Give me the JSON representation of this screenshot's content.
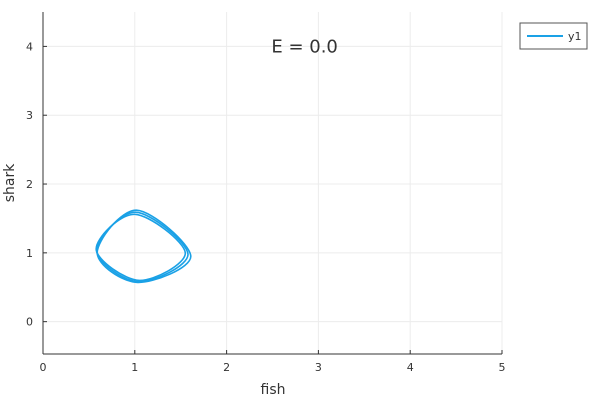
{
  "chart_data": {
    "type": "line",
    "xlabel": "fish",
    "ylabel": "shark",
    "xlim": [
      0,
      5
    ],
    "ylim": [
      -0.47,
      4.5
    ],
    "xticks": [
      0,
      1,
      2,
      3,
      4,
      5
    ],
    "yticks": [
      0,
      1,
      2,
      3,
      4
    ],
    "xtick_labels": [
      "0",
      "1",
      "2",
      "3",
      "4",
      "5"
    ],
    "ytick_labels": [
      "0",
      "1",
      "2",
      "3",
      "4"
    ],
    "grid": true,
    "legend_position": "top-right",
    "annotation": {
      "text": "E = 0.0",
      "x": 2.85,
      "y": 4.0
    },
    "series": [
      {
        "name": "y1",
        "color": "#1aa1e6",
        "loops": [
          {
            "x_min": 0.58,
            "x_max": 1.55,
            "y_min": 0.6,
            "y_max": 1.56,
            "x_top": 1.0,
            "y_left": 1.05,
            "x_bottom": 1.05
          },
          {
            "x_min": 0.585,
            "x_max": 1.58,
            "y_min": 0.58,
            "y_max": 1.59,
            "x_top": 1.01,
            "y_left": 1.03,
            "x_bottom": 1.04
          },
          {
            "x_min": 0.59,
            "x_max": 1.61,
            "y_min": 0.57,
            "y_max": 1.62,
            "x_top": 1.02,
            "y_left": 1.0,
            "x_bottom": 1.03
          }
        ]
      }
    ]
  }
}
